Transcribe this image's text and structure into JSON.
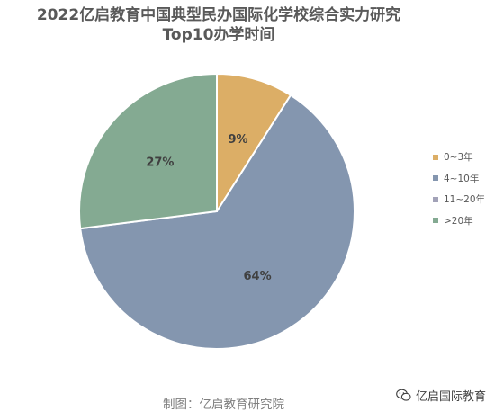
{
  "chart_data": {
    "type": "pie",
    "title": [
      "2022亿启教育中国典型民办国际化学校综合实力研究",
      "Top10办学时间"
    ],
    "categories": [
      "0~3年",
      "4~10年",
      "11~20年",
      ">20年"
    ],
    "values": [
      9,
      64,
      0,
      27
    ],
    "data_labels": [
      "9%",
      "64%",
      "",
      "27%"
    ],
    "colors": [
      "#DCAE66",
      "#8496AF",
      "#A2A2B8",
      "#84AA92"
    ],
    "legend_position": "right"
  },
  "footer": {
    "source": "制图：亿启教育研究院",
    "watermark": "亿启国际教育",
    "watermark_icon": "wechat-icon"
  }
}
